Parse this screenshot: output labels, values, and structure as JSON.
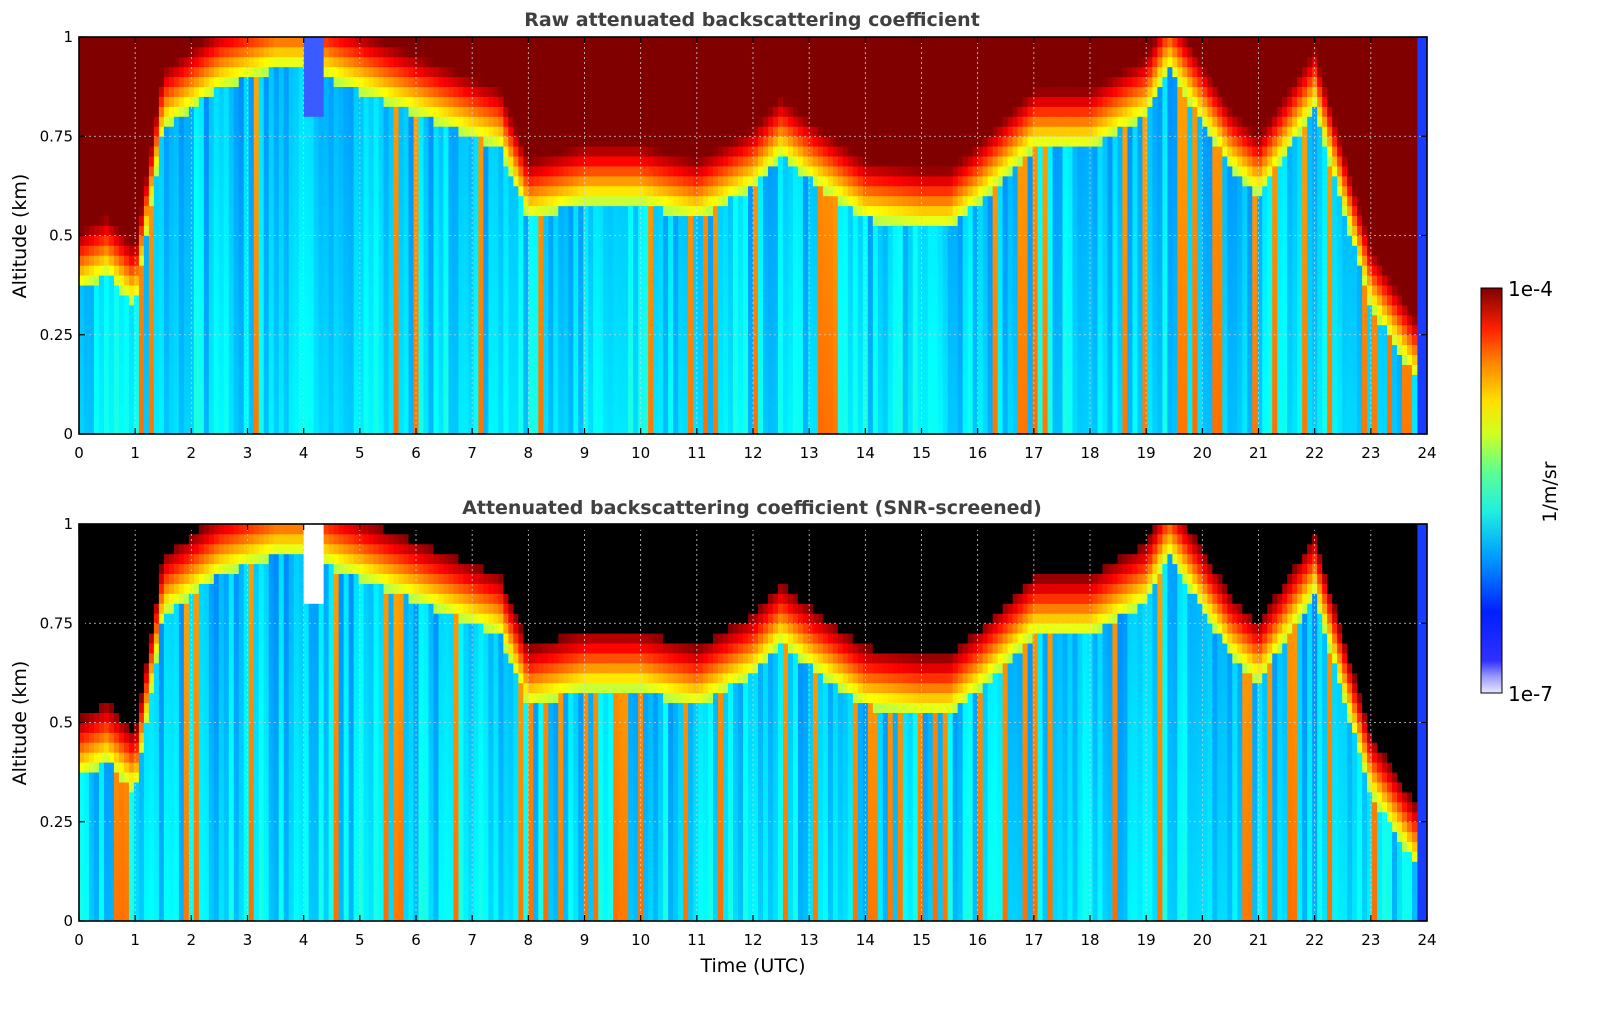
{
  "chart_data": [
    {
      "type": "heatmap",
      "title": "Raw attenuated backscattering coefficient",
      "xlabel": "",
      "ylabel": "Altitude (km)",
      "xlim": [
        0,
        24
      ],
      "ylim": [
        0,
        1
      ],
      "x_ticks": [
        "0",
        "1",
        "2",
        "3",
        "4",
        "5",
        "6",
        "7",
        "8",
        "9",
        "10",
        "11",
        "12",
        "13",
        "14",
        "15",
        "16",
        "17",
        "18",
        "19",
        "20",
        "21",
        "22",
        "23",
        "24"
      ],
      "y_ticks": [
        "0",
        "0.25",
        "0.5",
        "0.75",
        "1"
      ],
      "grid": true,
      "cloud_base_km": {
        "x": [
          0,
          0.5,
          1.0,
          1.5,
          2.5,
          3.5,
          4.0,
          7.5,
          8.0,
          9.0,
          10.0,
          11.0,
          12.0,
          12.5,
          13.0,
          14.0,
          15.0,
          15.5,
          16.0,
          17.0,
          18.0,
          19.0,
          19.4,
          20.5,
          21.0,
          22.0,
          23.0,
          23.8
        ],
        "y": [
          0.44,
          0.48,
          0.4,
          0.85,
          0.95,
          1.0,
          1.0,
          0.8,
          0.62,
          0.66,
          0.66,
          0.62,
          0.7,
          0.78,
          0.72,
          0.62,
          0.6,
          0.6,
          0.66,
          0.8,
          0.8,
          0.88,
          1.0,
          0.75,
          0.68,
          0.9,
          0.4,
          0.22
        ]
      }
    },
    {
      "type": "heatmap",
      "title": "Attenuated backscattering coefficient (SNR-screened)",
      "xlabel": "Time (UTC)",
      "ylabel": "Altitude (km)",
      "xlim": [
        0,
        24
      ],
      "ylim": [
        0,
        1
      ],
      "x_ticks": [
        "0",
        "1",
        "2",
        "3",
        "4",
        "5",
        "6",
        "7",
        "8",
        "9",
        "10",
        "11",
        "12",
        "13",
        "14",
        "15",
        "16",
        "17",
        "18",
        "19",
        "20",
        "21",
        "22",
        "23",
        "24"
      ],
      "y_ticks": [
        "0",
        "0.25",
        "0.5",
        "0.75",
        "1"
      ],
      "grid": true,
      "cloud_base_km": {
        "x": [
          0,
          0.5,
          1.0,
          1.5,
          2.5,
          3.5,
          4.0,
          7.5,
          8.0,
          9.0,
          10.0,
          11.0,
          12.0,
          12.5,
          13.0,
          14.0,
          15.0,
          15.5,
          16.0,
          17.0,
          18.0,
          19.0,
          19.4,
          20.5,
          21.0,
          22.0,
          23.0,
          23.8
        ],
        "y": [
          0.44,
          0.48,
          0.4,
          0.85,
          0.95,
          1.0,
          1.0,
          0.8,
          0.62,
          0.66,
          0.66,
          0.62,
          0.7,
          0.78,
          0.72,
          0.62,
          0.6,
          0.6,
          0.66,
          0.8,
          0.8,
          0.88,
          1.0,
          0.75,
          0.68,
          0.9,
          0.4,
          0.22
        ]
      }
    }
  ],
  "colorbar": {
    "label": "1/m/sr",
    "max_label": "1e-4",
    "min_label": "1e-7",
    "colormap": "jet",
    "scale": "log"
  }
}
